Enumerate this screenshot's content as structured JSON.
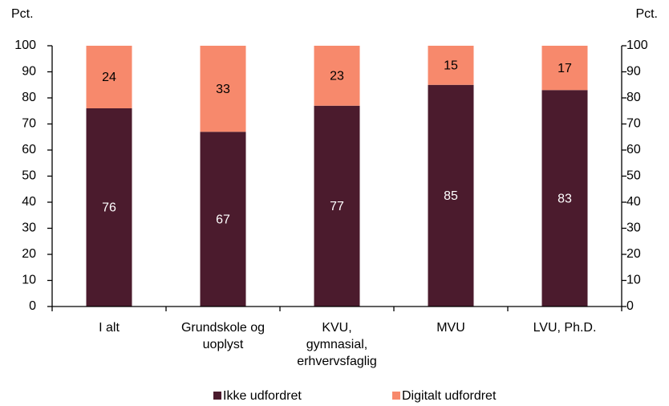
{
  "chart_data": {
    "type": "stacked-bar",
    "ylabel": "Pct.",
    "y2label": "Pct.",
    "categories": [
      [
        "I alt"
      ],
      [
        "Grundskole og",
        "uoplyst"
      ],
      [
        "KVU,",
        "gymnasial,",
        "erhvervsfaglig"
      ],
      [
        "MVU"
      ],
      [
        "LVU, Ph.D."
      ]
    ],
    "series": [
      {
        "name": "Ikke udfordret",
        "color": "#4b1b2d",
        "label_color": "#ffffff",
        "values": [
          76,
          67,
          77,
          85,
          83
        ]
      },
      {
        "name": "Digitalt udfordret",
        "color": "#f7896c",
        "label_color": "#000000",
        "values": [
          24,
          33,
          23,
          15,
          17
        ]
      }
    ],
    "ylim": [
      0,
      100
    ],
    "yticks": [
      0,
      10,
      20,
      30,
      40,
      50,
      60,
      70,
      80,
      90,
      100
    ],
    "y2lim": [
      0,
      100
    ],
    "y2ticks": [
      0,
      10,
      20,
      30,
      40,
      50,
      60,
      70,
      80,
      90,
      100
    ],
    "legend": "bottom"
  }
}
